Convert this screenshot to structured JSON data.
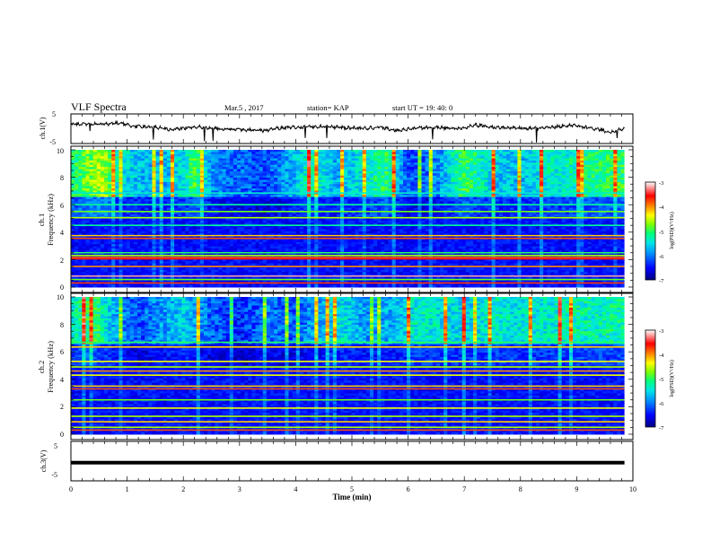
{
  "header": {
    "title": "VLF Spectra",
    "date": "Mar.5 , 2017",
    "station": "station= KAP",
    "start": "start UT = 19: 40: 0"
  },
  "colors": {
    "colormap": [
      "#00007f",
      "#0000ff",
      "#0090ff",
      "#00e5e5",
      "#00ff7f",
      "#7fff00",
      "#ffff00",
      "#ff8000",
      "#ff0000",
      "#ffffff"
    ]
  },
  "chart_data": [
    {
      "type": "line",
      "id": "ch1",
      "ylabel": "ch.1(V)",
      "ylim": [
        -5,
        5
      ],
      "yticks": [
        "5",
        "-5"
      ],
      "xlim": [
        0,
        10
      ],
      "x_end": 9.85,
      "baseline": [
        [
          0.0,
          1.5
        ],
        [
          0.5,
          1.6
        ],
        [
          0.9,
          1.9
        ],
        [
          1.1,
          0.8
        ],
        [
          1.5,
          0.5
        ],
        [
          1.8,
          -0.3
        ],
        [
          2.2,
          0.7
        ],
        [
          2.6,
          0.0
        ],
        [
          3.0,
          -0.2
        ],
        [
          3.4,
          -0.6
        ],
        [
          3.8,
          0.4
        ],
        [
          4.1,
          0.5
        ],
        [
          4.5,
          0.8
        ],
        [
          4.9,
          0.3
        ],
        [
          5.2,
          0.1
        ],
        [
          5.5,
          0.5
        ],
        [
          5.8,
          -0.6
        ],
        [
          6.2,
          0.3
        ],
        [
          6.5,
          0.5
        ],
        [
          6.9,
          -0.1
        ],
        [
          7.2,
          1.3
        ],
        [
          7.5,
          0.5
        ],
        [
          7.9,
          0.2
        ],
        [
          8.3,
          0.1
        ],
        [
          8.6,
          0.6
        ],
        [
          8.9,
          1.2
        ],
        [
          9.1,
          0.6
        ],
        [
          9.4,
          -0.2
        ],
        [
          9.6,
          -1.2
        ],
        [
          9.85,
          0.0
        ]
      ]
    },
    {
      "type": "heatmap",
      "id": "ch1-spectrogram",
      "ylabel_line1": "ch.1",
      "ylabel_line2": "Frequency (kHz)",
      "ylim": [
        0,
        10
      ],
      "yticks": [
        "0",
        "2",
        "4",
        "6",
        "8",
        "10"
      ],
      "xlim": [
        0,
        10
      ],
      "x_end": 9.85,
      "profile": [
        [
          0.0,
          0.45
        ],
        [
          0.3,
          0.55
        ],
        [
          0.6,
          0.6
        ],
        [
          0.8,
          0.4
        ],
        [
          1.2,
          0.33
        ],
        [
          1.6,
          0.3
        ],
        [
          2.0,
          0.38
        ],
        [
          2.2,
          0.52
        ],
        [
          2.5,
          0.28
        ],
        [
          3.0,
          0.22
        ],
        [
          3.5,
          0.2
        ],
        [
          4.0,
          0.33
        ],
        [
          4.3,
          0.45
        ],
        [
          4.7,
          0.3
        ],
        [
          5.2,
          0.38
        ],
        [
          5.6,
          0.48
        ],
        [
          6.0,
          0.2
        ],
        [
          6.5,
          0.25
        ],
        [
          7.0,
          0.5
        ],
        [
          7.5,
          0.35
        ],
        [
          8.0,
          0.32
        ],
        [
          8.5,
          0.4
        ],
        [
          9.0,
          0.42
        ],
        [
          9.5,
          0.48
        ],
        [
          10.0,
          0.5
        ]
      ],
      "lines": [
        [
          0.3,
          0.82
        ],
        [
          0.55,
          0.55
        ],
        [
          0.8,
          0.95
        ],
        [
          1.5,
          0.75
        ],
        [
          2.05,
          0.85
        ],
        [
          2.15,
          0.8
        ],
        [
          2.3,
          0.6
        ],
        [
          2.5,
          0.5
        ],
        [
          3.55,
          0.8
        ],
        [
          3.75,
          0.7
        ],
        [
          4.5,
          0.45
        ],
        [
          5.05,
          0.6
        ],
        [
          5.5,
          0.55
        ],
        [
          6.0,
          0.45
        ],
        [
          6.85,
          0.4
        ]
      ],
      "colorbar": {
        "label": "log(PSD)(V²/Hz)",
        "range": [
          -7,
          -3
        ],
        "ticks": [
          "-3",
          "-4",
          "-5",
          "-6",
          "-7"
        ]
      }
    },
    {
      "type": "heatmap",
      "id": "ch2-spectrogram",
      "ylabel_line1": "ch.2",
      "ylabel_line2": "Frequency (kHz)",
      "ylim": [
        0,
        10
      ],
      "yticks": [
        "0",
        "2",
        "4",
        "6",
        "8",
        "10"
      ],
      "xlim": [
        0,
        10
      ],
      "x_end": 9.85,
      "profile": [
        [
          0.0,
          0.4
        ],
        [
          0.4,
          0.5
        ],
        [
          0.8,
          0.3
        ],
        [
          1.2,
          0.2
        ],
        [
          1.6,
          0.28
        ],
        [
          2.0,
          0.35
        ],
        [
          2.5,
          0.22
        ],
        [
          3.0,
          0.15
        ],
        [
          3.5,
          0.25
        ],
        [
          3.9,
          0.2
        ],
        [
          4.3,
          0.28
        ],
        [
          4.8,
          0.38
        ],
        [
          5.3,
          0.28
        ],
        [
          5.8,
          0.32
        ],
        [
          6.2,
          0.42
        ],
        [
          6.6,
          0.38
        ],
        [
          7.0,
          0.35
        ],
        [
          7.5,
          0.4
        ],
        [
          8.0,
          0.38
        ],
        [
          8.5,
          0.4
        ],
        [
          9.0,
          0.42
        ],
        [
          9.5,
          0.42
        ],
        [
          10.0,
          0.45
        ]
      ],
      "lines": [
        [
          0.3,
          0.8
        ],
        [
          0.5,
          0.6
        ],
        [
          0.9,
          0.7
        ],
        [
          1.3,
          0.6
        ],
        [
          1.9,
          0.65
        ],
        [
          2.5,
          0.55
        ],
        [
          3.3,
          0.8
        ],
        [
          3.5,
          0.7
        ],
        [
          4.3,
          0.65
        ],
        [
          4.6,
          0.75
        ],
        [
          4.9,
          0.6
        ],
        [
          5.3,
          0.65
        ],
        [
          6.35,
          0.7
        ],
        [
          6.7,
          0.5
        ]
      ],
      "colorbar": {
        "label": "log(PSD)(V²/Hz)",
        "range": [
          -7,
          -3
        ],
        "ticks": [
          "-3",
          "-4",
          "-5",
          "-6",
          "-7"
        ]
      }
    },
    {
      "type": "line",
      "id": "ch3",
      "ylabel": "ch.3(V)",
      "ylim": [
        -5,
        5
      ],
      "yticks": [
        "5",
        "-5"
      ],
      "xlim": [
        0,
        10
      ],
      "x_end": 9.85,
      "baseline": [
        [
          0.0,
          -0.4
        ],
        [
          9.85,
          -0.4
        ]
      ],
      "xlabel": "Time (min)",
      "xticks": [
        "0",
        "1",
        "2",
        "3",
        "4",
        "5",
        "6",
        "7",
        "8",
        "9",
        "10"
      ]
    }
  ]
}
